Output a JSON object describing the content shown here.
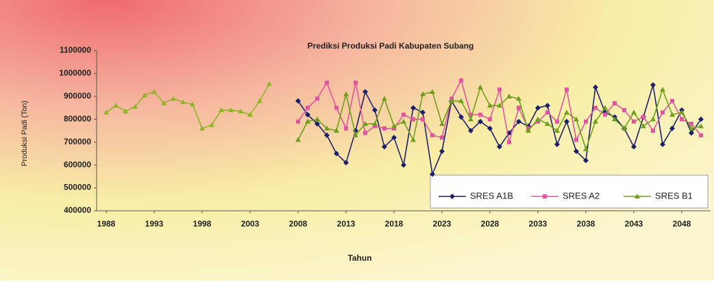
{
  "chart_data": {
    "type": "line",
    "title": "Prediksi Produksi Padi Kabupaten Subang",
    "x_label": "Tahun",
    "y_label": "Produksi Padi (Ton)",
    "x": [
      1988,
      1989,
      1990,
      1991,
      1992,
      1993,
      1994,
      1995,
      1996,
      1997,
      1998,
      1999,
      2000,
      2001,
      2002,
      2003,
      2004,
      2005,
      2006,
      2007,
      2008,
      2009,
      2010,
      2011,
      2012,
      2013,
      2014,
      2015,
      2016,
      2017,
      2018,
      2019,
      2020,
      2021,
      2022,
      2023,
      2024,
      2025,
      2026,
      2027,
      2028,
      2029,
      2030,
      2031,
      2032,
      2033,
      2034,
      2035,
      2036,
      2037,
      2038,
      2039,
      2040,
      2041,
      2042,
      2043,
      2044,
      2045,
      2046,
      2047,
      2048,
      2049,
      2050
    ],
    "series": [
      {
        "color": "#8fb524",
        "marker": "triangle",
        "values": [
          830000,
          860000,
          835000,
          855000,
          905000,
          920000,
          870000,
          890000,
          875000,
          865000,
          760000,
          775000,
          840000,
          840000,
          835000,
          820000,
          880000,
          955000,
          null,
          null,
          null,
          null,
          null,
          null,
          null,
          null,
          null,
          null,
          null,
          null,
          null,
          null,
          null,
          null,
          null,
          null,
          null,
          null,
          null,
          null,
          null,
          null,
          null,
          null,
          null,
          null,
          null,
          null,
          null,
          null,
          null,
          null,
          null,
          null,
          null,
          null,
          null,
          null,
          null,
          null,
          null,
          null,
          null
        ]
      },
      {
        "name": "SRES A1B",
        "color": "#1c1f6b",
        "marker": "diamond",
        "values": [
          null,
          null,
          null,
          null,
          null,
          null,
          null,
          null,
          null,
          null,
          null,
          null,
          null,
          null,
          null,
          null,
          null,
          null,
          null,
          null,
          880000,
          820000,
          780000,
          730000,
          650000,
          610000,
          750000,
          920000,
          840000,
          680000,
          720000,
          600000,
          850000,
          830000,
          560000,
          660000,
          880000,
          810000,
          750000,
          790000,
          760000,
          680000,
          740000,
          790000,
          770000,
          850000,
          860000,
          690000,
          790000,
          660000,
          620000,
          940000,
          830000,
          810000,
          760000,
          680000,
          810000,
          950000,
          690000,
          760000,
          840000,
          740000,
          800000
        ]
      },
      {
        "name": "SRES A2",
        "color": "#e0559f",
        "marker": "square",
        "values": [
          null,
          null,
          null,
          null,
          null,
          null,
          null,
          null,
          null,
          null,
          null,
          null,
          null,
          null,
          null,
          null,
          null,
          null,
          null,
          null,
          790000,
          850000,
          890000,
          960000,
          850000,
          760000,
          960000,
          740000,
          770000,
          760000,
          760000,
          820000,
          800000,
          800000,
          730000,
          720000,
          890000,
          970000,
          820000,
          820000,
          800000,
          930000,
          700000,
          850000,
          760000,
          790000,
          830000,
          790000,
          930000,
          710000,
          790000,
          850000,
          820000,
          870000,
          840000,
          790000,
          810000,
          750000,
          830000,
          880000,
          800000,
          780000,
          730000
        ]
      },
      {
        "name": "SRES B1",
        "color": "#6f9e1c",
        "marker": "triangle",
        "values": [
          null,
          null,
          null,
          null,
          null,
          null,
          null,
          null,
          null,
          null,
          null,
          null,
          null,
          null,
          null,
          null,
          null,
          null,
          null,
          null,
          710000,
          790000,
          800000,
          760000,
          750000,
          910000,
          730000,
          780000,
          780000,
          890000,
          770000,
          790000,
          710000,
          910000,
          920000,
          780000,
          880000,
          880000,
          800000,
          940000,
          860000,
          860000,
          900000,
          890000,
          750000,
          800000,
          780000,
          750000,
          830000,
          800000,
          670000,
          790000,
          850000,
          800000,
          760000,
          830000,
          770000,
          800000,
          930000,
          820000,
          830000,
          760000,
          770000
        ]
      }
    ],
    "xlim": [
      1987,
      2051
    ],
    "xticks": [
      1988,
      1993,
      1998,
      2003,
      2008,
      2013,
      2018,
      2023,
      2028,
      2033,
      2038,
      2043,
      2048
    ],
    "ylim": [
      400000,
      1100000
    ],
    "yticks": [
      400000,
      500000,
      600000,
      700000,
      800000,
      900000,
      1000000,
      1100000
    ],
    "grid": false,
    "legend": "lower right"
  }
}
